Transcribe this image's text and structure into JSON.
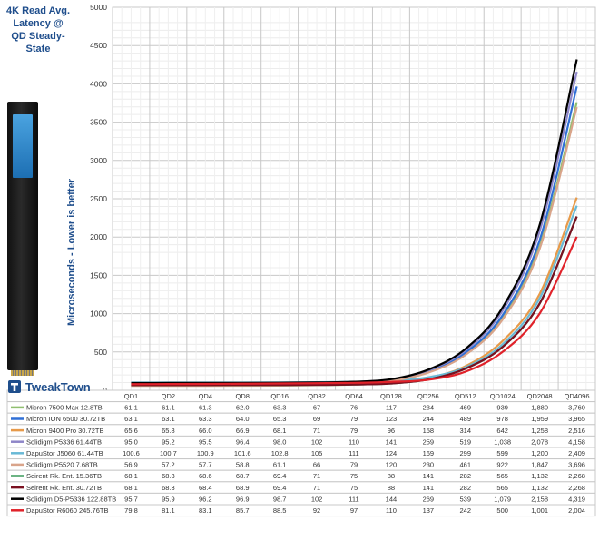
{
  "title": "4K Read Avg. Latency @ QD Steady-State",
  "ylabel_text": "Microseconds - Lower is better",
  "logo_text": "TweakTown",
  "device_label": "DapuStor",
  "chart_data": {
    "type": "line",
    "title": "4K Read Avg. Latency @ QD Steady-State",
    "ylabel": "Microseconds - Lower is better",
    "ylim": [
      0,
      5000
    ],
    "yticks": [
      0,
      500,
      1000,
      1500,
      2000,
      2500,
      3000,
      3500,
      4000,
      4500,
      5000
    ],
    "grid": true,
    "categories": [
      "QD1",
      "QD2",
      "QD4",
      "QD8",
      "QD16",
      "QD32",
      "QD64",
      "QD128",
      "QD256",
      "QD512",
      "QD1024",
      "QD2048",
      "QD4096"
    ],
    "series": [
      {
        "name": "Micron 7500 Max 12.8TB",
        "color": "#8fbf6f",
        "values": [
          61.1,
          61.1,
          61.3,
          62.0,
          63.3,
          67,
          76,
          117,
          234,
          469,
          939,
          1880,
          3760
        ],
        "labels": [
          "61.1",
          "61.1",
          "61.3",
          "62.0",
          "63.3",
          "67",
          "76",
          "117",
          "234",
          "469",
          "939",
          "1,880",
          "3,760"
        ]
      },
      {
        "name": "Micron ION 6500 30.72TB",
        "color": "#2f6fd6",
        "values": [
          63.1,
          63.1,
          63.3,
          64.0,
          65.3,
          69,
          79,
          123,
          244,
          489,
          978,
          1959,
          3965
        ],
        "labels": [
          "63.1",
          "63.1",
          "63.3",
          "64.0",
          "65.3",
          "69",
          "79",
          "123",
          "244",
          "489",
          "978",
          "1,959",
          "3,965"
        ]
      },
      {
        "name": "Micron 9400 Pro 30.72TB",
        "color": "#e79a4a",
        "values": [
          65.6,
          65.8,
          66.0,
          66.9,
          68.1,
          71,
          79,
          96,
          158,
          314,
          642,
          1258,
          2516
        ],
        "labels": [
          "65.6",
          "65.8",
          "66.0",
          "66.9",
          "68.1",
          "71",
          "79",
          "96",
          "158",
          "314",
          "642",
          "1,258",
          "2,516"
        ]
      },
      {
        "name": "Solidigm P5336 61.44TB",
        "color": "#8e86c8",
        "values": [
          95.0,
          95.2,
          95.5,
          96.4,
          98.0,
          102,
          110,
          141,
          259,
          519,
          1038,
          2078,
          4158
        ],
        "labels": [
          "95.0",
          "95.2",
          "95.5",
          "96.4",
          "98.0",
          "102",
          "110",
          "141",
          "259",
          "519",
          "1,038",
          "2,078",
          "4,158"
        ]
      },
      {
        "name": "DapuStor J5060 61.44TB",
        "color": "#69b9d6",
        "values": [
          100.6,
          100.7,
          100.9,
          101.6,
          102.8,
          105,
          111,
          124,
          169,
          299,
          599,
          1200,
          2409
        ],
        "labels": [
          "100.6",
          "100.7",
          "100.9",
          "101.6",
          "102.8",
          "105",
          "111",
          "124",
          "169",
          "299",
          "599",
          "1,200",
          "2,409"
        ]
      },
      {
        "name": "Solidigm P5520 7.68TB",
        "color": "#d9a48a",
        "values": [
          56.9,
          57.2,
          57.7,
          58.8,
          61.1,
          66,
          79,
          120,
          230,
          461,
          922,
          1847,
          3696
        ],
        "labels": [
          "56.9",
          "57.2",
          "57.7",
          "58.8",
          "61.1",
          "66",
          "79",
          "120",
          "230",
          "461",
          "922",
          "1,847",
          "3,696"
        ]
      },
      {
        "name": "Seirent Rk. Ent. 15.36TB",
        "color": "#3a9a5a",
        "values": [
          68.1,
          68.3,
          68.6,
          68.7,
          69.4,
          71,
          75,
          88,
          141,
          282,
          565,
          1132,
          2268
        ],
        "labels": [
          "68.1",
          "68.3",
          "68.6",
          "68.7",
          "69.4",
          "71",
          "75",
          "88",
          "141",
          "282",
          "565",
          "1,132",
          "2,268"
        ]
      },
      {
        "name": "Seirent Rk. Ent. 30.72TB",
        "color": "#7a1020",
        "values": [
          68.1,
          68.3,
          68.4,
          68.9,
          69.4,
          71,
          75,
          88,
          141,
          282,
          565,
          1132,
          2268
        ],
        "labels": [
          "68.1",
          "68.3",
          "68.4",
          "68.9",
          "69.4",
          "71",
          "75",
          "88",
          "141",
          "282",
          "565",
          "1,132",
          "2,268"
        ]
      },
      {
        "name": "Solidigm D5-P5336 122.88TB",
        "color": "#000000",
        "values": [
          95.7,
          95.9,
          96.2,
          96.9,
          98.7,
          102,
          111,
          144,
          269,
          539,
          1079,
          2158,
          4319
        ],
        "labels": [
          "95.7",
          "95.9",
          "96.2",
          "96.9",
          "98.7",
          "102",
          "111",
          "144",
          "269",
          "539",
          "1,079",
          "2,158",
          "4,319"
        ]
      },
      {
        "name": "DapuStor R6060 245.76TB",
        "color": "#e0222a",
        "values": [
          79.8,
          81.1,
          83.1,
          85.7,
          88.5,
          92,
          97,
          110,
          137,
          242,
          500,
          1001,
          2004
        ],
        "labels": [
          "79.8",
          "81.1",
          "83.1",
          "85.7",
          "88.5",
          "92",
          "97",
          "110",
          "137",
          "242",
          "500",
          "1,001",
          "2,004"
        ]
      }
    ]
  }
}
